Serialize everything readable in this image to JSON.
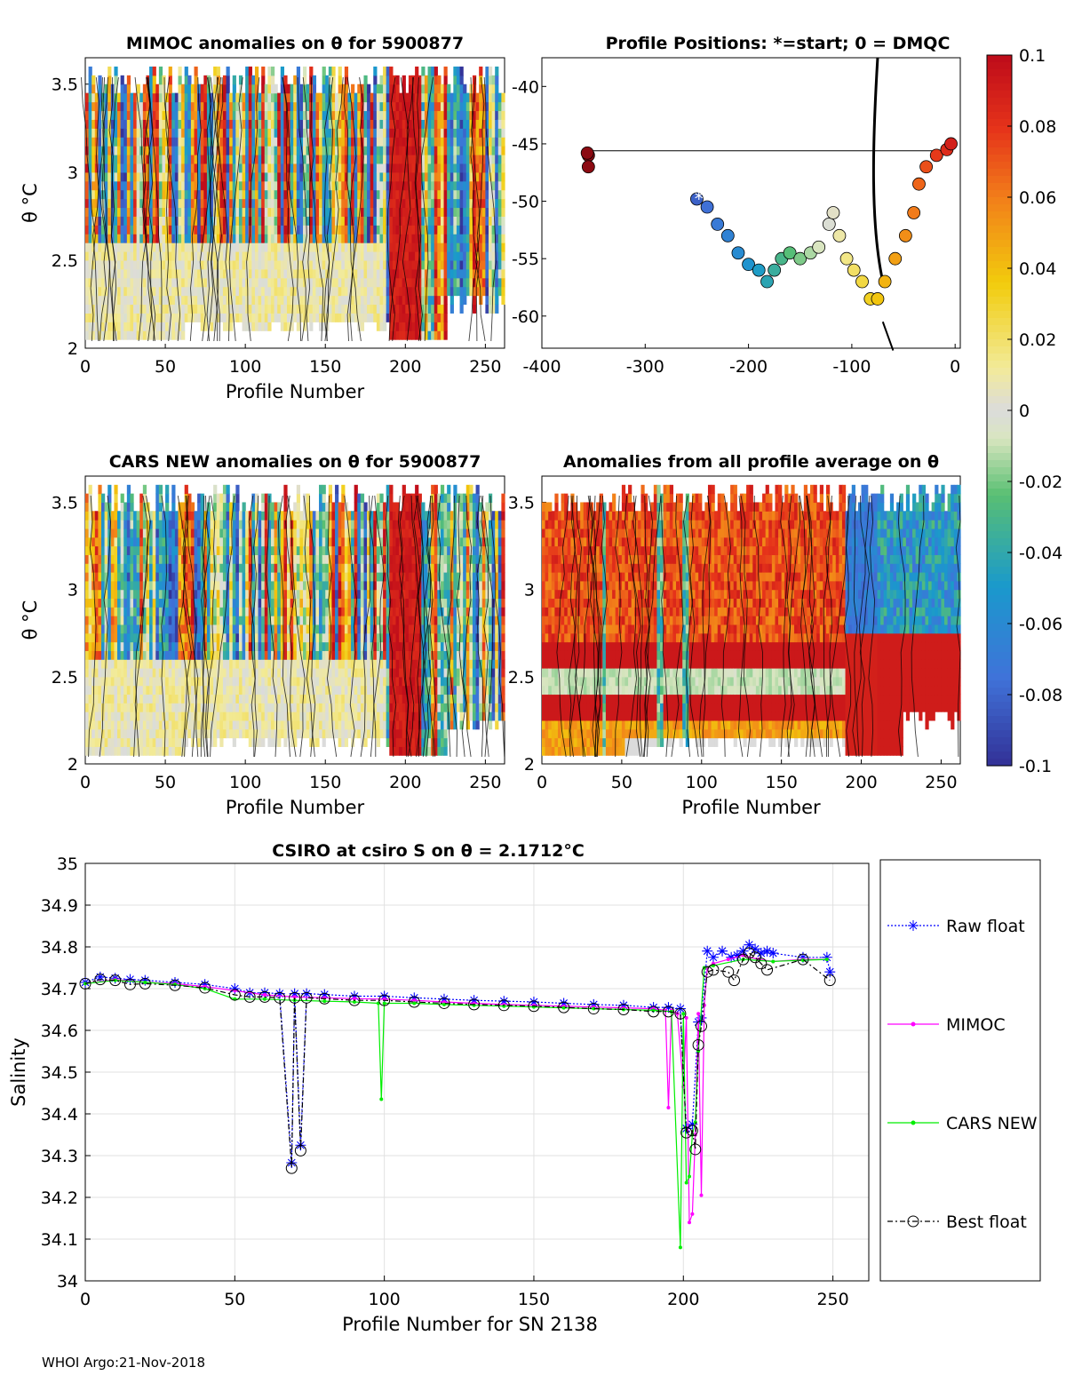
{
  "chart_data": [
    {
      "type": "heatmap",
      "title": "MIMOC anomalies on θ  for 5900877",
      "xlabel": "Profile Number",
      "ylabel": "θ °C",
      "xlim": [
        0,
        262
      ],
      "ylim": [
        2,
        3.65
      ],
      "xticks": [
        0,
        50,
        100,
        150,
        200,
        250
      ],
      "yticks": [
        2,
        2.5,
        3,
        3.5
      ],
      "clim": [
        -0.1,
        0.1
      ]
    },
    {
      "type": "scatter",
      "title": "Profile Positions: *=start; 0 = DMQC",
      "xlim": [
        -400,
        5
      ],
      "ylim": [
        -62.8,
        -37.5
      ],
      "xticks": [
        -400,
        -300,
        -200,
        -100,
        0
      ],
      "yticks": [
        -40,
        -45,
        -50,
        -55,
        -60
      ],
      "start_marker": [
        -248,
        -49.8
      ],
      "color_by": "profile number"
    },
    {
      "type": "heatmap",
      "title": "CARS NEW anomalies on θ for 5900877",
      "xlabel": "Profile Number",
      "ylabel": "θ °C",
      "xlim": [
        0,
        262
      ],
      "ylim": [
        2,
        3.65
      ],
      "xticks": [
        0,
        50,
        100,
        150,
        200,
        250
      ],
      "yticks": [
        2,
        2.5,
        3,
        3.5
      ],
      "clim": [
        -0.1,
        0.1
      ]
    },
    {
      "type": "heatmap",
      "title": "Anomalies from all profile average on θ",
      "xlabel": "Profile Number",
      "ylabel": "",
      "xlim": [
        0,
        262
      ],
      "ylim": [
        2,
        3.65
      ],
      "xticks": [
        0,
        50,
        100,
        150,
        200,
        250
      ],
      "yticks": [
        2,
        2.5,
        3,
        3.5
      ],
      "clim": [
        -0.1,
        0.1
      ]
    },
    {
      "type": "colorbar",
      "ticks": [
        0.1,
        0.08,
        0.06,
        0.04,
        0.02,
        0,
        -0.02,
        -0.04,
        -0.06,
        -0.08,
        -0.1
      ],
      "tick_labels": [
        "0.1",
        "0.08",
        "0.06",
        "0.04",
        "0.02",
        "0",
        "-0.02",
        "-0.04",
        "-0.06",
        "-0.08",
        "-0.1"
      ]
    },
    {
      "type": "line",
      "title": "CSIRO at csiro S on θ = 2.1712°C",
      "xlabel": "Profile Number for SN 2138",
      "ylabel": "Salinity",
      "xlim": [
        0,
        262
      ],
      "ylim": [
        34,
        35
      ],
      "xticks": [
        0,
        50,
        100,
        150,
        200,
        250
      ],
      "yticks": [
        34,
        34.1,
        34.2,
        34.3,
        34.4,
        34.5,
        34.6,
        34.7,
        34.8,
        34.9,
        35
      ],
      "ytick_labels": [
        "34",
        "34.1",
        "34.2",
        "34.3",
        "34.4",
        "34.5",
        "34.6",
        "34.7",
        "34.8",
        "34.9",
        "35"
      ],
      "legend": [
        "Raw float",
        "MIMOC",
        "CARS NEW",
        "Best float"
      ],
      "series": [
        {
          "name": "Raw float",
          "color": "#0000ff",
          "points": [
            [
              0,
              34.715
            ],
            [
              5,
              34.728
            ],
            [
              10,
              34.725
            ],
            [
              15,
              34.722
            ],
            [
              20,
              34.72
            ],
            [
              30,
              34.715
            ],
            [
              40,
              34.71
            ],
            [
              50,
              34.7
            ],
            [
              55,
              34.69
            ],
            [
              60,
              34.69
            ],
            [
              65,
              34.688
            ],
            [
              69,
              34.283
            ],
            [
              70,
              34.688
            ],
            [
              72,
              34.325
            ],
            [
              74,
              34.688
            ],
            [
              80,
              34.686
            ],
            [
              90,
              34.682
            ],
            [
              100,
              34.682
            ],
            [
              110,
              34.678
            ],
            [
              120,
              34.675
            ],
            [
              130,
              34.672
            ],
            [
              140,
              34.67
            ],
            [
              150,
              34.668
            ],
            [
              160,
              34.665
            ],
            [
              170,
              34.662
            ],
            [
              180,
              34.66
            ],
            [
              190,
              34.655
            ],
            [
              195,
              34.655
            ],
            [
              199,
              34.652
            ],
            [
              201,
              34.365
            ],
            [
              203,
              34.375
            ],
            [
              205,
              34.62
            ],
            [
              206,
              34.63
            ],
            [
              208,
              34.79
            ],
            [
              210,
              34.775
            ],
            [
              213,
              34.79
            ],
            [
              216,
              34.775
            ],
            [
              218,
              34.78
            ],
            [
              220,
              34.79
            ],
            [
              222,
              34.805
            ],
            [
              224,
              34.795
            ],
            [
              226,
              34.785
            ],
            [
              228,
              34.79
            ],
            [
              230,
              34.785
            ],
            [
              240,
              34.775
            ],
            [
              248,
              34.775
            ],
            [
              249,
              34.74
            ]
          ]
        },
        {
          "name": "MIMOC",
          "color": "#ff00ff",
          "points": [
            [
              0,
              34.712
            ],
            [
              10,
              34.722
            ],
            [
              20,
              34.715
            ],
            [
              30,
              34.712
            ],
            [
              40,
              34.705
            ],
            [
              50,
              34.695
            ],
            [
              60,
              34.685
            ],
            [
              70,
              34.68
            ],
            [
              80,
              34.678
            ],
            [
              90,
              34.676
            ],
            [
              100,
              34.675
            ],
            [
              110,
              34.672
            ],
            [
              120,
              34.668
            ],
            [
              130,
              34.665
            ],
            [
              140,
              34.662
            ],
            [
              150,
              34.66
            ],
            [
              160,
              34.658
            ],
            [
              170,
              34.656
            ],
            [
              180,
              34.654
            ],
            [
              190,
              34.652
            ],
            [
              194,
              34.648
            ],
            [
              195,
              34.415
            ],
            [
              196,
              34.648
            ],
            [
              198,
              34.64
            ],
            [
              200,
              34.465
            ],
            [
              201,
              34.63
            ],
            [
              202,
              34.14
            ],
            [
              203,
              34.16
            ],
            [
              204,
              34.35
            ],
            [
              205,
              34.64
            ],
            [
              206,
              34.205
            ],
            [
              207,
              34.66
            ],
            [
              208,
              34.75
            ],
            [
              210,
              34.76
            ],
            [
              215,
              34.77
            ],
            [
              220,
              34.78
            ],
            [
              225,
              34.77
            ],
            [
              230,
              34.765
            ],
            [
              240,
              34.77
            ],
            [
              248,
              34.77
            ]
          ]
        },
        {
          "name": "CARS NEW",
          "color": "#00ee00",
          "points": [
            [
              0,
              34.712
            ],
            [
              10,
              34.72
            ],
            [
              20,
              34.715
            ],
            [
              30,
              34.71
            ],
            [
              40,
              34.7
            ],
            [
              50,
              34.675
            ],
            [
              60,
              34.675
            ],
            [
              70,
              34.672
            ],
            [
              80,
              34.67
            ],
            [
              90,
              34.668
            ],
            [
              98,
              34.665
            ],
            [
              99,
              34.435
            ],
            [
              100,
              34.665
            ],
            [
              110,
              34.665
            ],
            [
              120,
              34.662
            ],
            [
              130,
              34.66
            ],
            [
              140,
              34.658
            ],
            [
              150,
              34.656
            ],
            [
              160,
              34.654
            ],
            [
              170,
              34.652
            ],
            [
              180,
              34.65
            ],
            [
              190,
              34.648
            ],
            [
              196,
              34.645
            ],
            [
              199,
              34.08
            ],
            [
              200,
              34.64
            ],
            [
              201,
              34.235
            ],
            [
              202,
              34.25
            ],
            [
              203,
              34.35
            ],
            [
              204,
              34.38
            ],
            [
              205,
              34.55
            ],
            [
              207,
              34.75
            ],
            [
              210,
              34.755
            ],
            [
              220,
              34.77
            ],
            [
              230,
              34.765
            ],
            [
              240,
              34.768
            ],
            [
              248,
              34.77
            ]
          ]
        },
        {
          "name": "Best float",
          "color": "#000000",
          "points": [
            [
              0,
              34.712
            ],
            [
              5,
              34.722
            ],
            [
              10,
              34.72
            ],
            [
              15,
              34.71
            ],
            [
              20,
              34.712
            ],
            [
              30,
              34.708
            ],
            [
              40,
              34.702
            ],
            [
              50,
              34.685
            ],
            [
              55,
              34.68
            ],
            [
              60,
              34.68
            ],
            [
              65,
              34.678
            ],
            [
              69,
              34.27
            ],
            [
              70,
              34.678
            ],
            [
              72,
              34.312
            ],
            [
              74,
              34.678
            ],
            [
              80,
              34.676
            ],
            [
              90,
              34.672
            ],
            [
              100,
              34.672
            ],
            [
              110,
              34.668
            ],
            [
              120,
              34.665
            ],
            [
              130,
              34.662
            ],
            [
              140,
              34.66
            ],
            [
              150,
              34.658
            ],
            [
              160,
              34.655
            ],
            [
              170,
              34.652
            ],
            [
              180,
              34.65
            ],
            [
              190,
              34.645
            ],
            [
              195,
              34.645
            ],
            [
              199,
              34.64
            ],
            [
              201,
              34.355
            ],
            [
              203,
              34.36
            ],
            [
              204,
              34.315
            ],
            [
              205,
              34.565
            ],
            [
              206,
              34.61
            ],
            [
              208,
              34.74
            ],
            [
              210,
              34.745
            ],
            [
              215,
              34.74
            ],
            [
              217,
              34.72
            ],
            [
              220,
              34.77
            ],
            [
              222,
              34.785
            ],
            [
              224,
              34.775
            ],
            [
              226,
              34.76
            ],
            [
              228,
              34.745
            ],
            [
              240,
              34.77
            ],
            [
              249,
              34.72
            ]
          ]
        }
      ]
    }
  ],
  "footer": "WHOI Argo:21-Nov-2018"
}
